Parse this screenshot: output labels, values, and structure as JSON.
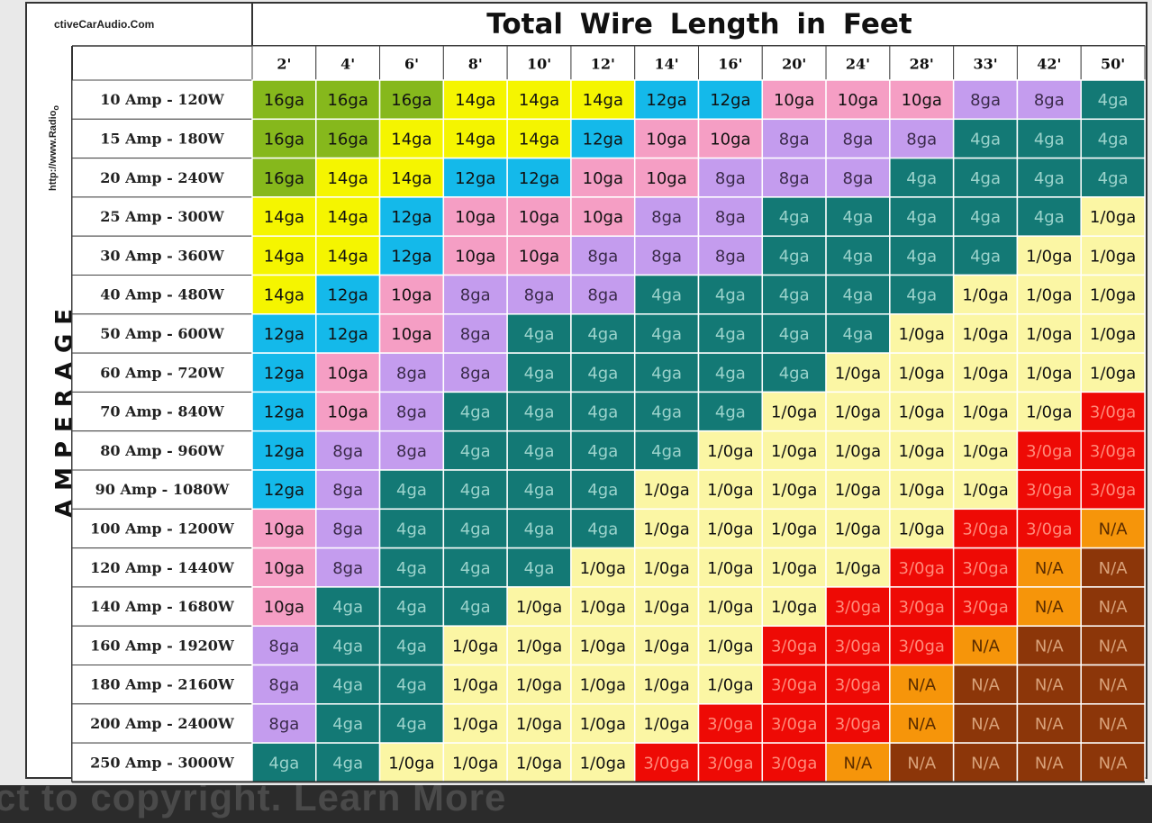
{
  "header": {
    "site": "ctiveCarAudio.Com",
    "url": "http://www.Radio",
    "url_suffix": "o",
    "title": "Total Wire Length in Feet",
    "axis_label": "AMPERAGE"
  },
  "footer": {
    "caption": "ct to copyright. Learn More"
  },
  "colors": {
    "16ga": "#86b81c",
    "14ga": "#f5f500",
    "12ga": "#14b9ea",
    "10ga": "#f59ec4",
    "8ga": "#c49cee",
    "4ga": "#137975",
    "1/0ga": "#fbf6a4",
    "3/0ga": "#ee0a05",
    "N/A": "#f6950a",
    "N/A-dark": "#8c3609"
  },
  "chart_data": {
    "type": "table",
    "title": "Total Wire Length in Feet",
    "ylabel": "AMPERAGE",
    "columns": [
      "2'",
      "4'",
      "6'",
      "8'",
      "10'",
      "12'",
      "14'",
      "16'",
      "20'",
      "24'",
      "28'",
      "33'",
      "42'",
      "50'"
    ],
    "rows": [
      {
        "label": "10 Amp - 120W",
        "cells": [
          "16ga",
          "16ga",
          "16ga",
          "14ga",
          "14ga",
          "14ga",
          "12ga",
          "12ga",
          "10ga",
          "10ga",
          "10ga",
          "8ga",
          "8ga",
          "4ga"
        ]
      },
      {
        "label": "15 Amp - 180W",
        "cells": [
          "16ga",
          "16ga",
          "14ga",
          "14ga",
          "14ga",
          "12ga",
          "10ga",
          "10ga",
          "8ga",
          "8ga",
          "8ga",
          "4ga",
          "4ga",
          "4ga"
        ]
      },
      {
        "label": "20 Amp - 240W",
        "cells": [
          "16ga",
          "14ga",
          "14ga",
          "12ga",
          "12ga",
          "10ga",
          "10ga",
          "8ga",
          "8ga",
          "8ga",
          "4ga",
          "4ga",
          "4ga",
          "4ga"
        ]
      },
      {
        "label": "25 Amp - 300W",
        "cells": [
          "14ga",
          "14ga",
          "12ga",
          "10ga",
          "10ga",
          "10ga",
          "8ga",
          "8ga",
          "4ga",
          "4ga",
          "4ga",
          "4ga",
          "4ga",
          "1/0ga"
        ]
      },
      {
        "label": "30 Amp - 360W",
        "cells": [
          "14ga",
          "14ga",
          "12ga",
          "10ga",
          "10ga",
          "8ga",
          "8ga",
          "8ga",
          "4ga",
          "4ga",
          "4ga",
          "4ga",
          "1/0ga",
          "1/0ga"
        ]
      },
      {
        "label": "40 Amp - 480W",
        "cells": [
          "14ga",
          "12ga",
          "10ga",
          "8ga",
          "8ga",
          "8ga",
          "4ga",
          "4ga",
          "4ga",
          "4ga",
          "4ga",
          "1/0ga",
          "1/0ga",
          "1/0ga"
        ]
      },
      {
        "label": "50 Amp - 600W",
        "cells": [
          "12ga",
          "12ga",
          "10ga",
          "8ga",
          "4ga",
          "4ga",
          "4ga",
          "4ga",
          "4ga",
          "4ga",
          "1/0ga",
          "1/0ga",
          "1/0ga",
          "1/0ga"
        ]
      },
      {
        "label": "60 Amp - 720W",
        "cells": [
          "12ga",
          "10ga",
          "8ga",
          "8ga",
          "4ga",
          "4ga",
          "4ga",
          "4ga",
          "4ga",
          "1/0ga",
          "1/0ga",
          "1/0ga",
          "1/0ga",
          "1/0ga"
        ]
      },
      {
        "label": "70 Amp - 840W",
        "cells": [
          "12ga",
          "10ga",
          "8ga",
          "4ga",
          "4ga",
          "4ga",
          "4ga",
          "4ga",
          "1/0ga",
          "1/0ga",
          "1/0ga",
          "1/0ga",
          "1/0ga",
          "3/0ga"
        ]
      },
      {
        "label": "80 Amp - 960W",
        "cells": [
          "12ga",
          "8ga",
          "8ga",
          "4ga",
          "4ga",
          "4ga",
          "4ga",
          "1/0ga",
          "1/0ga",
          "1/0ga",
          "1/0ga",
          "1/0ga",
          "3/0ga",
          "3/0ga"
        ]
      },
      {
        "label": "90 Amp - 1080W",
        "cells": [
          "12ga",
          "8ga",
          "4ga",
          "4ga",
          "4ga",
          "4ga",
          "1/0ga",
          "1/0ga",
          "1/0ga",
          "1/0ga",
          "1/0ga",
          "1/0ga",
          "3/0ga",
          "3/0ga"
        ]
      },
      {
        "label": "100 Amp - 1200W",
        "cells": [
          "10ga",
          "8ga",
          "4ga",
          "4ga",
          "4ga",
          "4ga",
          "1/0ga",
          "1/0ga",
          "1/0ga",
          "1/0ga",
          "1/0ga",
          "3/0ga",
          "3/0ga",
          "N/A"
        ]
      },
      {
        "label": "120 Amp - 1440W",
        "cells": [
          "10ga",
          "8ga",
          "4ga",
          "4ga",
          "4ga",
          "1/0ga",
          "1/0ga",
          "1/0ga",
          "1/0ga",
          "1/0ga",
          "3/0ga",
          "3/0ga",
          "N/A",
          "N/A"
        ]
      },
      {
        "label": "140 Amp - 1680W",
        "cells": [
          "10ga",
          "4ga",
          "4ga",
          "4ga",
          "1/0ga",
          "1/0ga",
          "1/0ga",
          "1/0ga",
          "1/0ga",
          "3/0ga",
          "3/0ga",
          "3/0ga",
          "N/A",
          "N/A"
        ]
      },
      {
        "label": "160 Amp - 1920W",
        "cells": [
          "8ga",
          "4ga",
          "4ga",
          "1/0ga",
          "1/0ga",
          "1/0ga",
          "1/0ga",
          "1/0ga",
          "3/0ga",
          "3/0ga",
          "3/0ga",
          "N/A",
          "N/A",
          "N/A"
        ]
      },
      {
        "label": "180 Amp - 2160W",
        "cells": [
          "8ga",
          "4ga",
          "4ga",
          "1/0ga",
          "1/0ga",
          "1/0ga",
          "1/0ga",
          "1/0ga",
          "3/0ga",
          "3/0ga",
          "N/A",
          "N/A",
          "N/A",
          "N/A"
        ]
      },
      {
        "label": "200 Amp - 2400W",
        "cells": [
          "8ga",
          "4ga",
          "4ga",
          "1/0ga",
          "1/0ga",
          "1/0ga",
          "1/0ga",
          "3/0ga",
          "3/0ga",
          "3/0ga",
          "N/A",
          "N/A",
          "N/A",
          "N/A"
        ]
      },
      {
        "label": "250 Amp - 3000W",
        "cells": [
          "4ga",
          "4ga",
          "1/0ga",
          "1/0ga",
          "1/0ga",
          "1/0ga",
          "3/0ga",
          "3/0ga",
          "3/0ga",
          "N/A",
          "N/A",
          "N/A",
          "N/A",
          "N/A"
        ]
      }
    ]
  }
}
